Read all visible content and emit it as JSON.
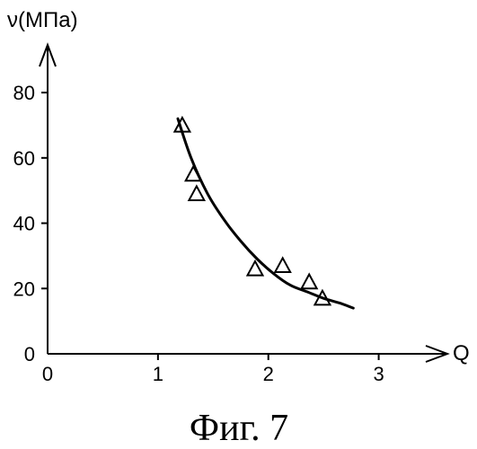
{
  "figure": {
    "caption": "Фиг. 7"
  },
  "chart_data": {
    "type": "scatter",
    "ylabel": "ν(МПа)",
    "xlabel": "Q",
    "xlim": [
      0,
      3.5
    ],
    "ylim": [
      0,
      88
    ],
    "xticks": [
      0,
      1,
      2,
      3
    ],
    "yticks": [
      0,
      20,
      40,
      60,
      80
    ],
    "grid": false,
    "marker": "triangle",
    "series": [
      {
        "points": [
          {
            "x": 1.22,
            "y": 70
          },
          {
            "x": 1.32,
            "y": 55
          },
          {
            "x": 1.35,
            "y": 49
          },
          {
            "x": 1.88,
            "y": 26
          },
          {
            "x": 2.13,
            "y": 27
          },
          {
            "x": 2.37,
            "y": 22
          },
          {
            "x": 2.49,
            "y": 17
          }
        ]
      }
    ],
    "trend_line": {
      "x": [
        1.18,
        1.3,
        1.45,
        1.6,
        1.75,
        1.9,
        2.05,
        2.2,
        2.35,
        2.5,
        2.65,
        2.77
      ],
      "y": [
        72,
        60,
        49,
        41,
        34.5,
        29,
        24.5,
        21,
        19,
        17,
        15.5,
        14
      ]
    }
  }
}
